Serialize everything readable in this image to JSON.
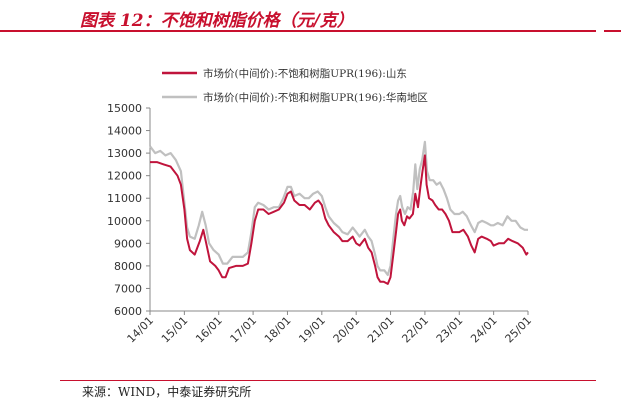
{
  "header": {
    "title": "图表 12：不饱和树脂价格（元/克）"
  },
  "footer": {
    "source": "来源：WIND，中泰证券研究所"
  },
  "colors": {
    "accent": "#c8102e",
    "series_shandong": "#c0143c",
    "series_southchina": "#c0c0c0"
  },
  "chart_data": {
    "type": "line",
    "title": "图表 12：不饱和树脂价格（元/克）",
    "xlabel": "",
    "ylabel": "",
    "ylim": [
      6000,
      15000
    ],
    "yticks": [
      6000,
      7000,
      8000,
      9000,
      10000,
      11000,
      12000,
      13000,
      14000,
      15000
    ],
    "xlim": [
      2014.0,
      2025.0
    ],
    "xticks": [
      "14/01",
      "15/01",
      "16/01",
      "17/01",
      "18/01",
      "19/01",
      "20/01",
      "21/01",
      "22/01",
      "23/01",
      "24/01",
      "25/01"
    ],
    "grid": false,
    "legend_position": "top",
    "series": [
      {
        "name": "市场价(中间价):不饱和树脂UPR(196):山东",
        "points": [
          [
            2014.0,
            12600
          ],
          [
            2014.2,
            12600
          ],
          [
            2014.4,
            12500
          ],
          [
            2014.6,
            12400
          ],
          [
            2014.8,
            12000
          ],
          [
            2014.9,
            11600
          ],
          [
            2015.0,
            10500
          ],
          [
            2015.08,
            9200
          ],
          [
            2015.16,
            8700
          ],
          [
            2015.3,
            8500
          ],
          [
            2015.45,
            9100
          ],
          [
            2015.55,
            9600
          ],
          [
            2015.65,
            8900
          ],
          [
            2015.75,
            8200
          ],
          [
            2015.9,
            8000
          ],
          [
            2016.0,
            7800
          ],
          [
            2016.1,
            7500
          ],
          [
            2016.2,
            7500
          ],
          [
            2016.3,
            7900
          ],
          [
            2016.5,
            8000
          ],
          [
            2016.7,
            8000
          ],
          [
            2016.85,
            8100
          ],
          [
            2016.95,
            9000
          ],
          [
            2017.05,
            10000
          ],
          [
            2017.15,
            10500
          ],
          [
            2017.3,
            10500
          ],
          [
            2017.45,
            10300
          ],
          [
            2017.6,
            10400
          ],
          [
            2017.75,
            10500
          ],
          [
            2017.9,
            10800
          ],
          [
            2018.0,
            11200
          ],
          [
            2018.1,
            11300
          ],
          [
            2018.2,
            10900
          ],
          [
            2018.35,
            10700
          ],
          [
            2018.5,
            10700
          ],
          [
            2018.65,
            10500
          ],
          [
            2018.8,
            10800
          ],
          [
            2018.9,
            10900
          ],
          [
            2019.0,
            10700
          ],
          [
            2019.1,
            10100
          ],
          [
            2019.2,
            9800
          ],
          [
            2019.35,
            9500
          ],
          [
            2019.5,
            9300
          ],
          [
            2019.6,
            9100
          ],
          [
            2019.75,
            9100
          ],
          [
            2019.9,
            9300
          ],
          [
            2020.0,
            9000
          ],
          [
            2020.1,
            8900
          ],
          [
            2020.25,
            9200
          ],
          [
            2020.35,
            8800
          ],
          [
            2020.45,
            8600
          ],
          [
            2020.55,
            8000
          ],
          [
            2020.62,
            7500
          ],
          [
            2020.7,
            7300
          ],
          [
            2020.8,
            7300
          ],
          [
            2020.92,
            7200
          ],
          [
            2021.0,
            7500
          ],
          [
            2021.08,
            8500
          ],
          [
            2021.16,
            9500
          ],
          [
            2021.22,
            10300
          ],
          [
            2021.28,
            10500
          ],
          [
            2021.33,
            10000
          ],
          [
            2021.4,
            9800
          ],
          [
            2021.48,
            10200
          ],
          [
            2021.55,
            10100
          ],
          [
            2021.65,
            10300
          ],
          [
            2021.72,
            11200
          ],
          [
            2021.8,
            10600
          ],
          [
            2021.87,
            11500
          ],
          [
            2021.93,
            12200
          ],
          [
            2022.0,
            12900
          ],
          [
            2022.05,
            11600
          ],
          [
            2022.12,
            11000
          ],
          [
            2022.22,
            10900
          ],
          [
            2022.3,
            10700
          ],
          [
            2022.4,
            10500
          ],
          [
            2022.5,
            10500
          ],
          [
            2022.6,
            10300
          ],
          [
            2022.7,
            10000
          ],
          [
            2022.8,
            9500
          ],
          [
            2022.95,
            9500
          ],
          [
            2023.0,
            9500
          ],
          [
            2023.12,
            9600
          ],
          [
            2023.25,
            9300
          ],
          [
            2023.35,
            8900
          ],
          [
            2023.45,
            8600
          ],
          [
            2023.55,
            9200
          ],
          [
            2023.65,
            9300
          ],
          [
            2023.8,
            9200
          ],
          [
            2023.92,
            9100
          ],
          [
            2024.0,
            8900
          ],
          [
            2024.15,
            9000
          ],
          [
            2024.3,
            9000
          ],
          [
            2024.42,
            9200
          ],
          [
            2024.55,
            9100
          ],
          [
            2024.7,
            9000
          ],
          [
            2024.85,
            8800
          ],
          [
            2024.95,
            8500
          ],
          [
            2025.0,
            8600
          ]
        ]
      },
      {
        "name": "市场价(中间价):不饱和树脂UPR(196):华南地区",
        "points": [
          [
            2014.0,
            13300
          ],
          [
            2014.15,
            13000
          ],
          [
            2014.3,
            13100
          ],
          [
            2014.45,
            12900
          ],
          [
            2014.6,
            13000
          ],
          [
            2014.75,
            12700
          ],
          [
            2014.9,
            12200
          ],
          [
            2015.0,
            10800
          ],
          [
            2015.08,
            9700
          ],
          [
            2015.16,
            9300
          ],
          [
            2015.3,
            9200
          ],
          [
            2015.42,
            9800
          ],
          [
            2015.52,
            10400
          ],
          [
            2015.62,
            9800
          ],
          [
            2015.72,
            9000
          ],
          [
            2015.85,
            8700
          ],
          [
            2016.0,
            8500
          ],
          [
            2016.12,
            8100
          ],
          [
            2016.25,
            8100
          ],
          [
            2016.4,
            8400
          ],
          [
            2016.55,
            8400
          ],
          [
            2016.7,
            8400
          ],
          [
            2016.85,
            8600
          ],
          [
            2016.95,
            9500
          ],
          [
            2017.05,
            10600
          ],
          [
            2017.15,
            10800
          ],
          [
            2017.3,
            10700
          ],
          [
            2017.45,
            10500
          ],
          [
            2017.6,
            10600
          ],
          [
            2017.75,
            10600
          ],
          [
            2017.88,
            11000
          ],
          [
            2018.0,
            11500
          ],
          [
            2018.1,
            11500
          ],
          [
            2018.2,
            11100
          ],
          [
            2018.35,
            11200
          ],
          [
            2018.5,
            11000
          ],
          [
            2018.62,
            11000
          ],
          [
            2018.75,
            11200
          ],
          [
            2018.88,
            11300
          ],
          [
            2019.0,
            11100
          ],
          [
            2019.1,
            10600
          ],
          [
            2019.2,
            10200
          ],
          [
            2019.35,
            9900
          ],
          [
            2019.5,
            9700
          ],
          [
            2019.6,
            9500
          ],
          [
            2019.75,
            9400
          ],
          [
            2019.9,
            9700
          ],
          [
            2020.0,
            9500
          ],
          [
            2020.1,
            9300
          ],
          [
            2020.25,
            9600
          ],
          [
            2020.35,
            9300
          ],
          [
            2020.45,
            9100
          ],
          [
            2020.55,
            8500
          ],
          [
            2020.62,
            8000
          ],
          [
            2020.7,
            7800
          ],
          [
            2020.82,
            7800
          ],
          [
            2020.92,
            7600
          ],
          [
            2021.0,
            8000
          ],
          [
            2021.08,
            9200
          ],
          [
            2021.16,
            10300
          ],
          [
            2021.22,
            10900
          ],
          [
            2021.28,
            11100
          ],
          [
            2021.34,
            10600
          ],
          [
            2021.42,
            10300
          ],
          [
            2021.5,
            10600
          ],
          [
            2021.58,
            10500
          ],
          [
            2021.66,
            11300
          ],
          [
            2021.72,
            12500
          ],
          [
            2021.78,
            11400
          ],
          [
            2021.85,
            12300
          ],
          [
            2021.92,
            12700
          ],
          [
            2022.0,
            13500
          ],
          [
            2022.06,
            12200
          ],
          [
            2022.14,
            11800
          ],
          [
            2022.24,
            11800
          ],
          [
            2022.34,
            11600
          ],
          [
            2022.44,
            11700
          ],
          [
            2022.54,
            11400
          ],
          [
            2022.64,
            11000
          ],
          [
            2022.74,
            10500
          ],
          [
            2022.86,
            10300
          ],
          [
            2023.0,
            10300
          ],
          [
            2023.1,
            10400
          ],
          [
            2023.22,
            10200
          ],
          [
            2023.34,
            9800
          ],
          [
            2023.45,
            9500
          ],
          [
            2023.55,
            9900
          ],
          [
            2023.66,
            10000
          ],
          [
            2023.8,
            9900
          ],
          [
            2023.92,
            9800
          ],
          [
            2024.0,
            9800
          ],
          [
            2024.12,
            9900
          ],
          [
            2024.26,
            9800
          ],
          [
            2024.4,
            10200
          ],
          [
            2024.52,
            10000
          ],
          [
            2024.64,
            10000
          ],
          [
            2024.78,
            9700
          ],
          [
            2024.9,
            9600
          ],
          [
            2025.0,
            9600
          ]
        ]
      }
    ]
  }
}
